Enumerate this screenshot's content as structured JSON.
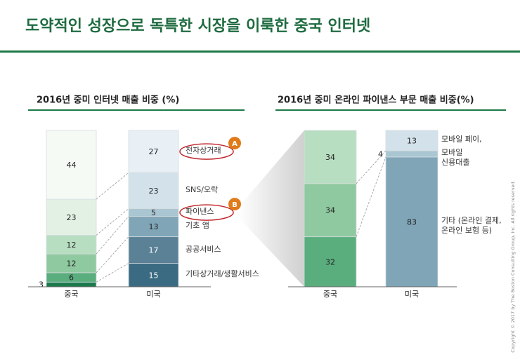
{
  "header": {
    "title": "도약적인 성장으로 독특한 시장을 이룩한 중국 인터넷"
  },
  "chart_data": [
    {
      "type": "bar",
      "stacked": true,
      "title": "2016년 중미 인터넷 매출 비중 (%)",
      "categories": [
        "중국",
        "미국"
      ],
      "ylim": [
        0,
        100
      ],
      "series": [
        {
          "name": "기타상거래/생활서비스",
          "colors": [
            "#1a7a4c",
            "#3b6b82"
          ],
          "values": [
            3,
            15
          ]
        },
        {
          "name": "공공서비스",
          "colors": [
            "#5aae7e",
            "#5b8196"
          ],
          "values": [
            6,
            17
          ]
        },
        {
          "name": "기초 앱",
          "colors": [
            "#8fc9a0",
            "#7fa5b7"
          ],
          "values": [
            12,
            13
          ]
        },
        {
          "name": "파이낸스",
          "colors": [
            "#b8dec1",
            "#a9c6d2"
          ],
          "values": [
            12,
            5
          ]
        },
        {
          "name": "SNS/오락",
          "colors": [
            "#e3f1e5",
            "#d3e2ea"
          ],
          "values": [
            23,
            23
          ]
        },
        {
          "name": "전자상거래",
          "colors": [
            "#f5faf5",
            "#e8eff5"
          ],
          "values": [
            44,
            27
          ]
        }
      ]
    },
    {
      "type": "bar",
      "stacked": true,
      "title": "2016년 중미 온라인 파이낸스 부문 매출 비중(%)",
      "categories": [
        "중국",
        "미국"
      ],
      "ylim": [
        0,
        100
      ],
      "series": [
        {
          "name": "기타 (온라인 결제,\n온라인 보험 등)",
          "colors": [
            "#5aae7e",
            "#7fa5b7"
          ],
          "values": [
            32,
            83
          ]
        },
        {
          "name": "모바일\n신용대출",
          "colors": [
            "#8fc9a0",
            "#a9c6d2"
          ],
          "values": [
            34,
            4
          ]
        },
        {
          "name": "모바일 페이,",
          "colors": [
            "#b8dec1",
            "#d3e2ea"
          ],
          "values": [
            34,
            13
          ]
        }
      ]
    }
  ],
  "annotations": [
    "A",
    "B"
  ],
  "copyright": "Copyright © 2017 by The Boston Consulting Group, Inc. All rights reserved."
}
